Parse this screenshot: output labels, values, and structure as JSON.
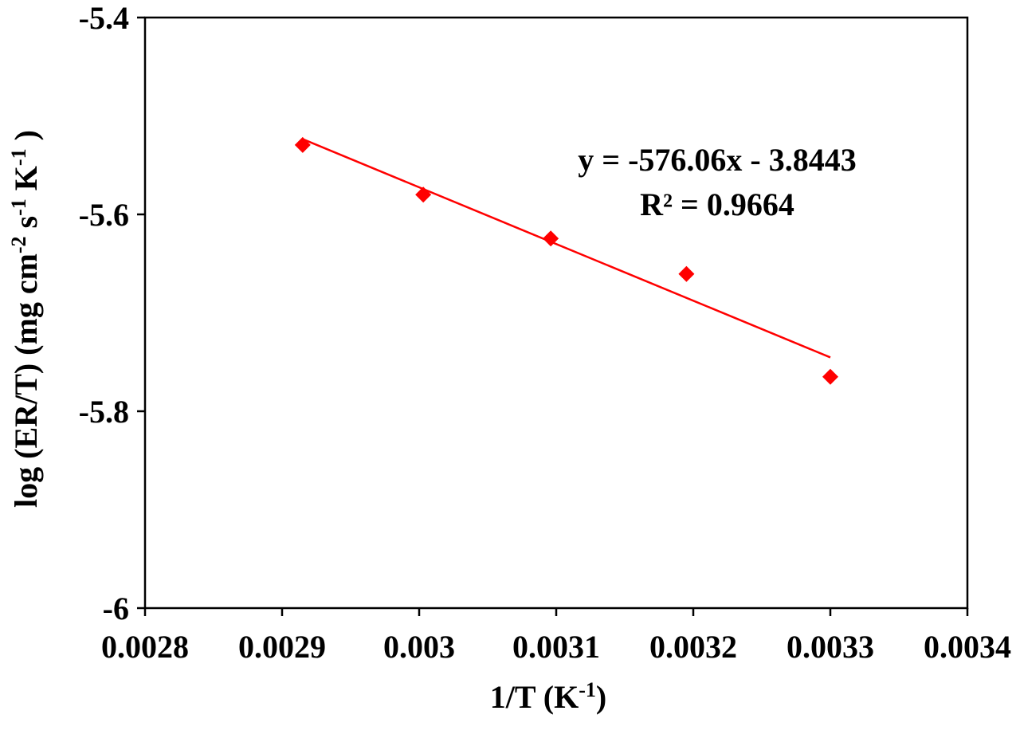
{
  "chart_data": {
    "type": "scatter",
    "title": "",
    "xlabel": {
      "base": "1/T (K",
      "sup": "-1",
      "tail": ")"
    },
    "ylabel": {
      "parts": [
        {
          "t": "log (ER/T) (mg cm"
        },
        {
          "t": "-2",
          "sup": true
        },
        {
          "t": " s"
        },
        {
          "t": "-1",
          "sup": true
        },
        {
          "t": " K"
        },
        {
          "t": "-1",
          "sup": true
        },
        {
          "t": " )"
        }
      ]
    },
    "xlim": [
      0.0028,
      0.0034
    ],
    "ylim": [
      -6.0,
      -5.4
    ],
    "x_ticks": [
      0.0028,
      0.0029,
      0.003,
      0.0031,
      0.0032,
      0.0033,
      0.0034
    ],
    "x_tick_labels": [
      "0.0028",
      "0.0029",
      "0.003",
      "0.0031",
      "0.0032",
      "0.0033",
      "0.0034"
    ],
    "y_ticks": [
      -5.4,
      -5.6,
      -5.8,
      -6.0
    ],
    "y_tick_labels": [
      "-5.4",
      "-5.6",
      "-5.8",
      "-6"
    ],
    "grid": false,
    "series": [
      {
        "marker": "diamond",
        "color": "#ff0000",
        "points": [
          {
            "x": 0.002915,
            "y": -5.5295
          },
          {
            "x": 0.003003,
            "y": -5.58
          },
          {
            "x": 0.003096,
            "y": -5.6245
          },
          {
            "x": 0.003195,
            "y": -5.6605
          },
          {
            "x": 0.0033,
            "y": -5.765
          }
        ]
      }
    ],
    "trendline": {
      "type": "linear",
      "slope": -576.06,
      "intercept": -3.8443,
      "x_range": [
        0.002915,
        0.0033
      ],
      "color": "#ff0000"
    },
    "annotations": [
      "y = -576.06x - 3.8443",
      "R² = 0.9664"
    ]
  }
}
